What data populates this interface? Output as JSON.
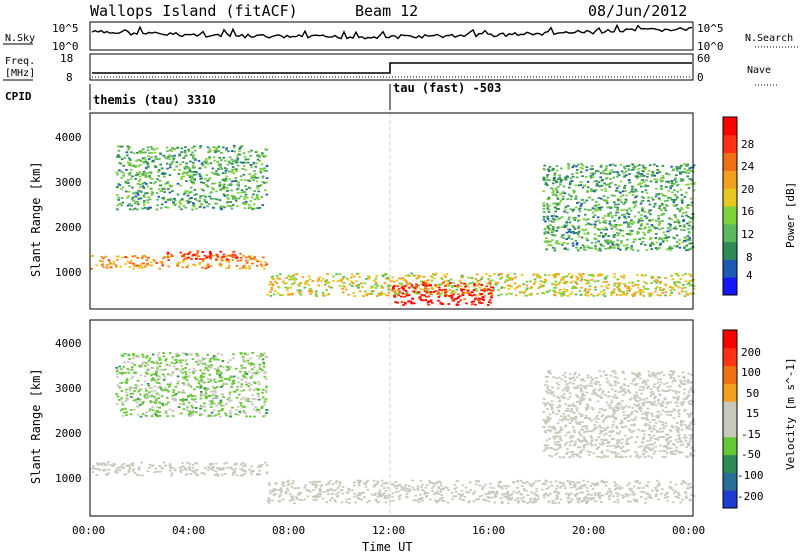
{
  "header": {
    "station": "Wallops Island (fitACF)",
    "beam": "Beam 12",
    "date": "08/Jun/2012"
  },
  "top_panels": {
    "nsky_label": "N.Sky",
    "nsky_ticks": [
      "10^5",
      "10^0"
    ],
    "nsearch_label": "N.Search",
    "nsearch_ticks": [
      "10^5",
      "10^0"
    ],
    "freq_label_1": "Freq.",
    "freq_label_2": "[MHz]",
    "freq_ticks": [
      "18",
      "8"
    ],
    "nave_label": "Nave",
    "nave_ticks": [
      "60",
      "0"
    ],
    "cpid_label": "CPID",
    "cpid_modes": [
      "themis (tau) 3310",
      "tau (fast) -503"
    ]
  },
  "colors": {
    "power": [
      "#1414ff",
      "#1e5ab4",
      "#2e8b57",
      "#5cb85c",
      "#7fd23c",
      "#e6c81e",
      "#f0a01e",
      "#f06e14",
      "#ff3214",
      "#ff0000"
    ],
    "velocity": [
      "#1e3cd2",
      "#286e96",
      "#2e8b57",
      "#64c832",
      "#c8c8bc",
      "#c8c8bc",
      "#f0a01e",
      "#f06e14",
      "#ff3214",
      "#ff0000"
    ]
  },
  "chart_data": [
    {
      "type": "heatmap",
      "name": "power",
      "ylabel": "Slant Range [km]",
      "yticks": [
        "4000",
        "3000",
        "2000",
        "1000"
      ],
      "ylim": [
        200,
        4500
      ],
      "xlim": [
        "00:00",
        "24:00"
      ],
      "colorbar_label": "Power [dB]",
      "colorbar_ticks": [
        "28",
        "24",
        "20",
        "16",
        "12",
        "8",
        "4"
      ],
      "colorbar_range": [
        0,
        30
      ],
      "regions": [
        {
          "t": [
            0,
            7
          ],
          "r": [
            1100,
            1400
          ],
          "v": 20
        },
        {
          "t": [
            3,
            6
          ],
          "r": [
            1300,
            1500
          ],
          "v": 26
        },
        {
          "t": [
            1,
            7
          ],
          "r": [
            2400,
            3800
          ],
          "v": 10
        },
        {
          "t": [
            7,
            24
          ],
          "r": [
            500,
            1000
          ],
          "v": 16
        },
        {
          "t": [
            12,
            16
          ],
          "r": [
            300,
            800
          ],
          "v": 28
        },
        {
          "t": [
            18,
            24
          ],
          "r": [
            1500,
            3400
          ],
          "v": 10
        }
      ]
    },
    {
      "type": "heatmap",
      "name": "velocity",
      "ylabel": "Slant Range [km]",
      "yticks": [
        "4000",
        "3000",
        "2000",
        "1000"
      ],
      "ylim": [
        200,
        4500
      ],
      "xlim": [
        "00:00",
        "24:00"
      ],
      "xlabel": "Time UT",
      "xticks": [
        "00:00",
        "04:00",
        "08:00",
        "12:00",
        "16:00",
        "20:00",
        "00:00"
      ],
      "colorbar_label": "Velocity [m s^-1]",
      "colorbar_ticks": [
        "200",
        "100",
        "50",
        "15",
        "-15",
        "-50",
        "-100",
        "-200"
      ],
      "colorbar_range": [
        -250,
        250
      ],
      "regions": [
        {
          "t": [
            0,
            7
          ],
          "r": [
            1100,
            1400
          ],
          "v": 0
        },
        {
          "t": [
            1,
            7
          ],
          "r": [
            2400,
            3800
          ],
          "v": -60
        },
        {
          "t": [
            7,
            24
          ],
          "r": [
            500,
            1000
          ],
          "v": 0
        },
        {
          "t": [
            18,
            24
          ],
          "r": [
            1500,
            3400
          ],
          "v": 0
        }
      ]
    }
  ]
}
